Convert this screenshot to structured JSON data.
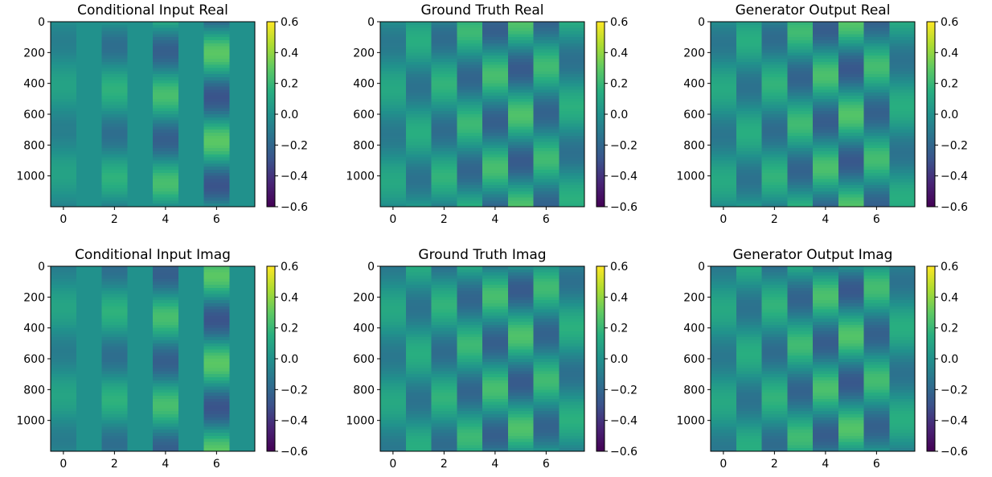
{
  "chart_data": [
    {
      "type": "heatmap",
      "title": "Conditional Input Real",
      "x_ticks": [
        "0",
        "2",
        "4",
        "6"
      ],
      "y_ticks": [
        "0",
        "200",
        "400",
        "600",
        "800",
        "1000"
      ],
      "xlim": [
        -0.5,
        7.5
      ],
      "ylim": [
        1200,
        0
      ],
      "colorbar_ticks": [
        "0.6",
        "0.4",
        "0.2",
        "0.0",
        "−0.2",
        "−0.4",
        "−0.6"
      ],
      "vmin": -0.6,
      "vmax": 0.6,
      "colormap": "viridis",
      "columns": [
        {
          "col": 0,
          "amp": 0.09,
          "phase": 3.3
        },
        {
          "col": 1,
          "amp": 0.0,
          "phase": 0
        },
        {
          "col": 2,
          "amp": 0.17,
          "phase": 3.0
        },
        {
          "col": 3,
          "amp": 0.0,
          "phase": 0
        },
        {
          "col": 4,
          "amp": 0.24,
          "phase": 2.6
        },
        {
          "col": 5,
          "amp": 0.0,
          "phase": 0
        },
        {
          "col": 6,
          "amp": 0.29,
          "phase": 5.6
        },
        {
          "col": 7,
          "amp": 0.0,
          "phase": 0
        }
      ],
      "cycles": 2.1,
      "offset": 0.0
    },
    {
      "type": "heatmap",
      "title": "Ground Truth Real",
      "x_ticks": [
        "0",
        "2",
        "4",
        "6"
      ],
      "y_ticks": [
        "0",
        "200",
        "400",
        "600",
        "800",
        "1000"
      ],
      "xlim": [
        -0.5,
        7.5
      ],
      "ylim": [
        1200,
        0
      ],
      "colorbar_ticks": [
        "0.6",
        "0.4",
        "0.2",
        "0.0",
        "−0.2",
        "−0.4",
        "−0.6"
      ],
      "vmin": -0.6,
      "vmax": 0.6,
      "colormap": "viridis",
      "columns": [
        {
          "col": 0,
          "amp": 0.12,
          "phase": 3.3
        },
        {
          "col": 1,
          "amp": 0.15,
          "phase": 0.3
        },
        {
          "col": 2,
          "amp": 0.18,
          "phase": 3.6
        },
        {
          "col": 3,
          "amp": 0.21,
          "phase": 0.9
        },
        {
          "col": 4,
          "amp": 0.24,
          "phase": 4.2
        },
        {
          "col": 5,
          "amp": 0.26,
          "phase": 1.5
        },
        {
          "col": 6,
          "amp": 0.22,
          "phase": 4.8
        },
        {
          "col": 7,
          "amp": 0.16,
          "phase": 2.1
        }
      ],
      "cycles": 2.0,
      "offset": 0.0
    },
    {
      "type": "heatmap",
      "title": "Generator Output Real",
      "x_ticks": [
        "0",
        "2",
        "4",
        "6"
      ],
      "y_ticks": [
        "0",
        "200",
        "400",
        "600",
        "800",
        "1000"
      ],
      "xlim": [
        -0.5,
        7.5
      ],
      "ylim": [
        1200,
        0
      ],
      "colorbar_ticks": [
        "0.6",
        "0.4",
        "0.2",
        "0.0",
        "−0.2",
        "−0.4",
        "−0.6"
      ],
      "vmin": -0.6,
      "vmax": 0.6,
      "colormap": "viridis",
      "columns": [
        {
          "col": 0,
          "amp": 0.13,
          "phase": 3.3
        },
        {
          "col": 1,
          "amp": 0.15,
          "phase": 0.3
        },
        {
          "col": 2,
          "amp": 0.18,
          "phase": 3.6
        },
        {
          "col": 3,
          "amp": 0.22,
          "phase": 0.9
        },
        {
          "col": 4,
          "amp": 0.25,
          "phase": 4.2
        },
        {
          "col": 5,
          "amp": 0.27,
          "phase": 1.5
        },
        {
          "col": 6,
          "amp": 0.23,
          "phase": 4.8
        },
        {
          "col": 7,
          "amp": 0.15,
          "phase": 2.1
        }
      ],
      "cycles": 2.0,
      "offset": 0.0
    },
    {
      "type": "heatmap",
      "title": "Conditional Input Imag",
      "x_ticks": [
        "0",
        "2",
        "4",
        "6"
      ],
      "y_ticks": [
        "0",
        "200",
        "400",
        "600",
        "800",
        "1000"
      ],
      "xlim": [
        -0.5,
        7.5
      ],
      "ylim": [
        1200,
        0
      ],
      "colorbar_ticks": [
        "0.6",
        "0.4",
        "0.2",
        "0.0",
        "−0.2",
        "−0.4",
        "−0.6"
      ],
      "vmin": -0.6,
      "vmax": 0.6,
      "colormap": "viridis",
      "columns": [
        {
          "col": 0,
          "amp": 0.1,
          "phase": 4.9
        },
        {
          "col": 1,
          "amp": 0.0,
          "phase": 0
        },
        {
          "col": 2,
          "amp": 0.17,
          "phase": 4.6
        },
        {
          "col": 3,
          "amp": 0.0,
          "phase": 0
        },
        {
          "col": 4,
          "amp": 0.24,
          "phase": 4.2
        },
        {
          "col": 5,
          "amp": 0.0,
          "phase": 0
        },
        {
          "col": 6,
          "amp": 0.29,
          "phase": 0.9
        },
        {
          "col": 7,
          "amp": 0.0,
          "phase": 0
        }
      ],
      "cycles": 2.1,
      "offset": 0.0
    },
    {
      "type": "heatmap",
      "title": "Ground Truth Imag",
      "x_ticks": [
        "0",
        "2",
        "4",
        "6"
      ],
      "y_ticks": [
        "0",
        "200",
        "400",
        "600",
        "800",
        "1000"
      ],
      "xlim": [
        -0.5,
        7.5
      ],
      "ylim": [
        1200,
        0
      ],
      "colorbar_ticks": [
        "0.6",
        "0.4",
        "0.2",
        "0.0",
        "−0.2",
        "−0.4",
        "−0.6"
      ],
      "vmin": -0.6,
      "vmax": 0.6,
      "colormap": "viridis",
      "columns": [
        {
          "col": 0,
          "amp": 0.12,
          "phase": 4.9
        },
        {
          "col": 1,
          "amp": 0.15,
          "phase": 1.9
        },
        {
          "col": 2,
          "amp": 0.18,
          "phase": 5.2
        },
        {
          "col": 3,
          "amp": 0.21,
          "phase": 2.5
        },
        {
          "col": 4,
          "amp": 0.24,
          "phase": 5.8
        },
        {
          "col": 5,
          "amp": 0.26,
          "phase": 3.1
        },
        {
          "col": 6,
          "amp": 0.22,
          "phase": 0.1
        },
        {
          "col": 7,
          "amp": 0.16,
          "phase": 3.7
        }
      ],
      "cycles": 2.0,
      "offset": 0.0
    },
    {
      "type": "heatmap",
      "title": "Generator Output Imag",
      "x_ticks": [
        "0",
        "2",
        "4",
        "6"
      ],
      "y_ticks": [
        "0",
        "200",
        "400",
        "600",
        "800",
        "1000"
      ],
      "xlim": [
        -0.5,
        7.5
      ],
      "ylim": [
        1200,
        0
      ],
      "colorbar_ticks": [
        "0.6",
        "0.4",
        "0.2",
        "0.0",
        "−0.2",
        "−0.4",
        "−0.6"
      ],
      "vmin": -0.6,
      "vmax": 0.6,
      "colormap": "viridis",
      "columns": [
        {
          "col": 0,
          "amp": 0.12,
          "phase": 4.9
        },
        {
          "col": 1,
          "amp": 0.15,
          "phase": 1.9
        },
        {
          "col": 2,
          "amp": 0.18,
          "phase": 5.2
        },
        {
          "col": 3,
          "amp": 0.22,
          "phase": 2.5
        },
        {
          "col": 4,
          "amp": 0.25,
          "phase": 5.8
        },
        {
          "col": 5,
          "amp": 0.27,
          "phase": 3.1
        },
        {
          "col": 6,
          "amp": 0.23,
          "phase": 0.1
        },
        {
          "col": 7,
          "amp": 0.15,
          "phase": 3.7
        }
      ],
      "cycles": 2.0,
      "offset": 0.0
    }
  ]
}
